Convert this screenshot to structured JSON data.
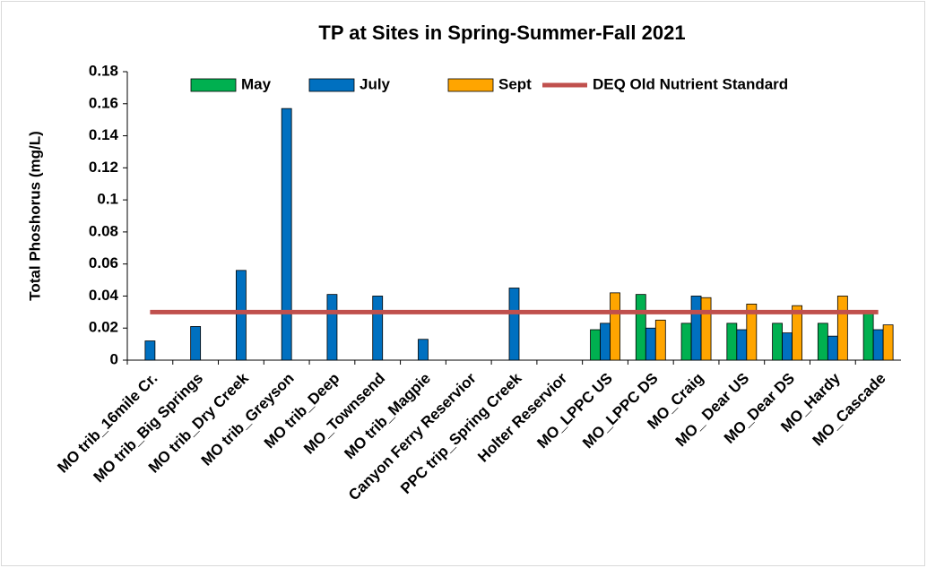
{
  "chart_data": {
    "type": "bar",
    "title": "TP at Sites in Spring-Summer-Fall 2021",
    "y_label": "Total Phoshorus (mg/L)",
    "categories": [
      "MO trib_16mile Cr.",
      "MO trib_Big Springs",
      "MO trib_Dry Creek",
      "MO trib_Greyson",
      "MO trib_Deep",
      "MO_Townsend",
      "MO trib_Magpie",
      "Canyon Ferry  Reservior",
      "PPC trip_Spring Creek",
      "Holter Reservior",
      "MO_LPPC US",
      "MO_LPPC DS",
      "MO_Craig",
      "MO_ Dear US",
      "MO_Dear DS",
      "MO_Hardy",
      "MO_Cascade"
    ],
    "series": [
      {
        "name": "May",
        "color": "#00b050",
        "values": [
          null,
          null,
          null,
          null,
          null,
          null,
          null,
          null,
          null,
          null,
          0.019,
          0.041,
          0.023,
          0.023,
          0.023,
          0.023,
          0.03
        ]
      },
      {
        "name": "July",
        "color": "#0070c0",
        "values": [
          0.012,
          0.021,
          0.056,
          0.157,
          0.041,
          0.04,
          0.013,
          null,
          0.045,
          null,
          0.023,
          0.02,
          0.04,
          0.019,
          0.017,
          0.015,
          0.019
        ]
      },
      {
        "name": "Sept",
        "color": "#ffa500",
        "values": [
          null,
          null,
          null,
          null,
          null,
          null,
          null,
          null,
          null,
          null,
          0.042,
          0.025,
          0.039,
          0.035,
          0.034,
          0.04,
          0.022
        ]
      },
      {
        "name": "DEQ Old Nutrient Standard",
        "color": "#c0504d",
        "type": "line",
        "values": [
          0.03,
          0.03,
          0.03,
          0.03,
          0.03,
          0.03,
          0.03,
          0.03,
          0.03,
          0.03,
          0.03,
          0.03,
          0.03,
          0.03,
          0.03,
          0.03,
          0.03
        ]
      }
    ],
    "ylim": [
      0,
      0.18
    ],
    "yticks": [
      0,
      0.02,
      0.04,
      0.06,
      0.08,
      0.1,
      0.12,
      0.14,
      0.16,
      0.18
    ],
    "grid": false,
    "legend": "top"
  }
}
